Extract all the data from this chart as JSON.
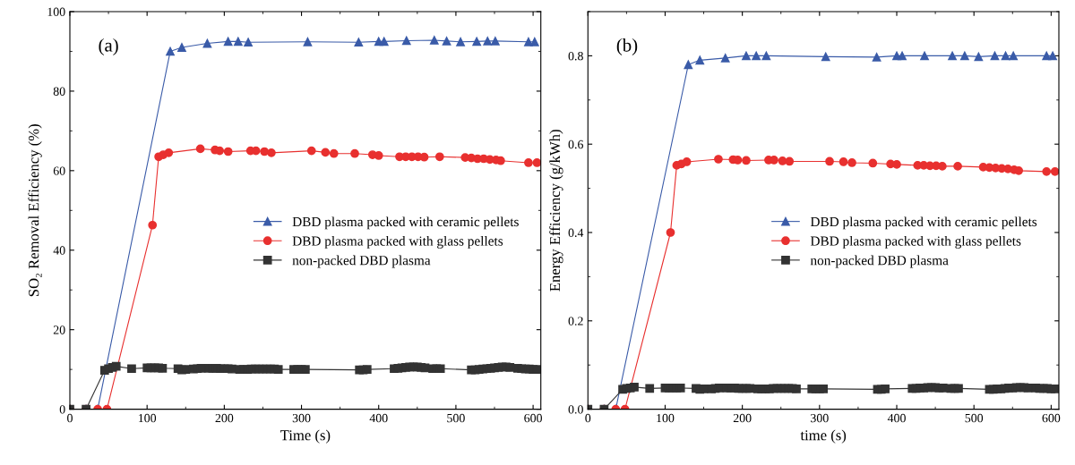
{
  "chart_data": [
    {
      "type": "line",
      "xlabel": "Time (s)",
      "ylabel": "SO₂ Removal Efficiency (%)",
      "annotations": [
        "(a)"
      ],
      "xlim": [
        0,
        610
      ],
      "xticks": [
        0,
        100,
        200,
        300,
        400,
        500,
        600
      ],
      "ylim": [
        0,
        100
      ],
      "yticks": [
        0,
        20,
        40,
        60,
        80,
        100
      ],
      "legend": "center right",
      "line_style": "solid",
      "grid": false,
      "series": [
        {
          "name": "DBD plasma packed with ceramic pellets",
          "color": "#3a5ba8",
          "marker": "triangle",
          "x": [
            0,
            21,
            36,
            130,
            145,
            178,
            205,
            218,
            231,
            308,
            374,
            400,
            407,
            436,
            472,
            488,
            506,
            527,
            541,
            551,
            594,
            602
          ],
          "values": [
            0,
            0,
            0,
            90,
            91,
            92,
            92.5,
            92.5,
            92.3,
            92.4,
            92.3,
            92.5,
            92.5,
            92.7,
            92.8,
            92.6,
            92.4,
            92.5,
            92.6,
            92.6,
            92.4,
            92.4
          ]
        },
        {
          "name": "DBD plasma packed with glass pellets",
          "color": "#e8302f",
          "marker": "circle",
          "x": [
            0,
            21,
            36,
            48,
            107,
            115,
            121,
            128,
            169,
            188,
            194,
            205,
            234,
            241,
            252,
            261,
            313,
            331,
            342,
            369,
            392,
            400,
            427,
            435,
            443,
            451,
            459,
            479,
            512,
            520,
            528,
            536,
            544,
            552,
            558,
            594,
            605
          ],
          "values": [
            0,
            0,
            0,
            0,
            46.3,
            63.5,
            64,
            64.5,
            65.5,
            65.2,
            65,
            64.8,
            65,
            65,
            64.8,
            64.5,
            65,
            64.6,
            64.3,
            64.3,
            64,
            63.8,
            63.5,
            63.5,
            63.5,
            63.5,
            63.4,
            63.5,
            63.3,
            63.2,
            63,
            63,
            62.8,
            62.7,
            62.5,
            62,
            62
          ]
        },
        {
          "name": "non-packed DBD plasma",
          "color": "#333333",
          "marker": "square",
          "x": [
            0,
            21,
            45,
            50,
            55,
            60,
            80,
            100,
            105,
            110,
            115,
            120,
            140,
            145,
            150,
            160,
            165,
            170,
            180,
            185,
            190,
            195,
            200,
            205,
            210,
            220,
            225,
            230,
            235,
            240,
            245,
            250,
            255,
            260,
            265,
            270,
            290,
            295,
            300,
            305,
            375,
            380,
            385,
            420,
            425,
            430,
            435,
            440,
            445,
            450,
            455,
            460,
            470,
            475,
            480,
            520,
            525,
            530,
            535,
            540,
            545,
            550,
            555,
            560,
            565,
            570,
            580,
            585,
            590,
            595,
            600,
            605
          ],
          "values": [
            0,
            0,
            9.8,
            10.2,
            10.5,
            10.8,
            10.2,
            10.4,
            10.4,
            10.4,
            10.4,
            10.3,
            10.2,
            9.9,
            10,
            10.1,
            10.2,
            10.3,
            10.3,
            10.3,
            10.3,
            10.2,
            10.2,
            10.2,
            10.1,
            10,
            10,
            10,
            10.1,
            10.1,
            10.1,
            10.1,
            10.1,
            10.1,
            10.1,
            10,
            10,
            10,
            10,
            10,
            9.9,
            9.9,
            10,
            10.2,
            10.3,
            10.4,
            10.5,
            10.6,
            10.6,
            10.6,
            10.5,
            10.4,
            10.2,
            10.2,
            10.2,
            9.9,
            9.9,
            10,
            10.1,
            10.2,
            10.3,
            10.4,
            10.5,
            10.6,
            10.6,
            10.5,
            10.3,
            10.2,
            10.1,
            10.1,
            10,
            10
          ]
        }
      ]
    },
    {
      "type": "line",
      "xlabel": "time (s)",
      "ylabel": "Energy Efficiency (g/kWh)",
      "annotations": [
        "(b)"
      ],
      "xlim": [
        0,
        610
      ],
      "xticks": [
        0,
        100,
        200,
        300,
        400,
        500,
        600
      ],
      "ylim": [
        0,
        0.9
      ],
      "yticks": [
        {
          "value": 0,
          "label": "0.0"
        },
        0.2,
        0.4,
        0.6,
        0.8
      ],
      "legend": "center right",
      "line_style": "solid",
      "grid": false,
      "series": [
        {
          "name": "DBD plasma packed with ceramic pellets",
          "color": "#3a5ba8",
          "marker": "triangle",
          "x": [
            0,
            21,
            36,
            130,
            145,
            178,
            205,
            218,
            231,
            308,
            374,
            400,
            407,
            436,
            472,
            488,
            506,
            527,
            541,
            551,
            594,
            602
          ],
          "values": [
            0,
            0,
            0,
            0.78,
            0.79,
            0.795,
            0.8,
            0.8,
            0.8,
            0.798,
            0.797,
            0.8,
            0.8,
            0.8,
            0.8,
            0.8,
            0.798,
            0.8,
            0.8,
            0.8,
            0.8,
            0.8
          ]
        },
        {
          "name": "DBD plasma packed with glass pellets",
          "color": "#e8302f",
          "marker": "circle",
          "x": [
            0,
            21,
            36,
            48,
            107,
            115,
            121,
            128,
            169,
            188,
            194,
            205,
            234,
            241,
            252,
            261,
            313,
            331,
            342,
            369,
            392,
            400,
            427,
            435,
            443,
            451,
            459,
            479,
            512,
            520,
            528,
            536,
            544,
            552,
            558,
            594,
            605
          ],
          "values": [
            0,
            0,
            0,
            0,
            0.4,
            0.552,
            0.555,
            0.56,
            0.566,
            0.565,
            0.564,
            0.563,
            0.564,
            0.564,
            0.562,
            0.561,
            0.561,
            0.56,
            0.558,
            0.557,
            0.555,
            0.554,
            0.552,
            0.552,
            0.551,
            0.551,
            0.55,
            0.55,
            0.548,
            0.547,
            0.546,
            0.545,
            0.544,
            0.542,
            0.54,
            0.538,
            0.538
          ]
        },
        {
          "name": "non-packed DBD plasma",
          "color": "#333333",
          "marker": "square",
          "x": [
            0,
            21,
            45,
            50,
            55,
            60,
            80,
            100,
            105,
            110,
            115,
            120,
            140,
            145,
            150,
            160,
            165,
            170,
            180,
            185,
            190,
            195,
            200,
            205,
            210,
            220,
            225,
            230,
            235,
            240,
            245,
            250,
            255,
            260,
            265,
            270,
            290,
            295,
            300,
            305,
            375,
            380,
            385,
            420,
            425,
            430,
            435,
            440,
            445,
            450,
            455,
            460,
            470,
            475,
            480,
            520,
            525,
            530,
            535,
            540,
            545,
            550,
            555,
            560,
            565,
            570,
            580,
            585,
            590,
            595,
            600,
            605
          ],
          "values": [
            0,
            0,
            0.045,
            0.047,
            0.048,
            0.05,
            0.047,
            0.048,
            0.048,
            0.048,
            0.048,
            0.048,
            0.047,
            0.045,
            0.046,
            0.046,
            0.047,
            0.048,
            0.048,
            0.048,
            0.048,
            0.047,
            0.047,
            0.047,
            0.047,
            0.046,
            0.046,
            0.046,
            0.046,
            0.047,
            0.047,
            0.047,
            0.047,
            0.047,
            0.047,
            0.046,
            0.046,
            0.046,
            0.046,
            0.046,
            0.045,
            0.045,
            0.046,
            0.047,
            0.047,
            0.048,
            0.048,
            0.049,
            0.049,
            0.049,
            0.048,
            0.048,
            0.047,
            0.047,
            0.047,
            0.045,
            0.045,
            0.046,
            0.046,
            0.047,
            0.048,
            0.048,
            0.049,
            0.049,
            0.049,
            0.048,
            0.048,
            0.047,
            0.047,
            0.047,
            0.046,
            0.046
          ]
        }
      ]
    }
  ]
}
